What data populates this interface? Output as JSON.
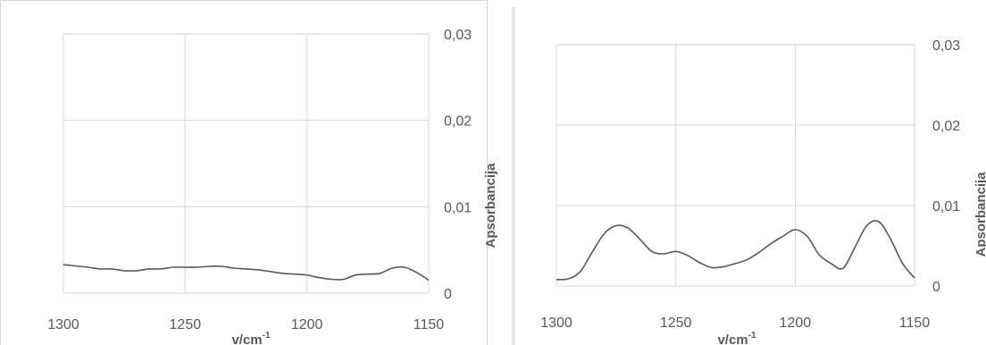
{
  "chart_data": [
    {
      "type": "line",
      "title": "",
      "xlabel": "v/cm",
      "xlabel_sup": "-1",
      "ylabel": "Apsorbancija",
      "x_reversed": true,
      "xlim": [
        1300,
        1150
      ],
      "ylim": [
        0,
        0.03
      ],
      "x_ticks": [
        1300,
        1250,
        1200,
        1150
      ],
      "y_ticks": [
        0,
        0.01,
        0.02,
        0.03
      ],
      "x_tick_labels": [
        "1300",
        "1250",
        "1200",
        "1150"
      ],
      "y_tick_labels": [
        "0",
        "0,01",
        "0,02",
        "0,03"
      ],
      "grid": true,
      "legend": "none",
      "series": [
        {
          "x": [
            1300,
            1290,
            1285,
            1280,
            1275,
            1270,
            1265,
            1260,
            1255,
            1250,
            1245,
            1240,
            1235,
            1230,
            1225,
            1220,
            1215,
            1210,
            1205,
            1200,
            1195,
            1190,
            1185,
            1180,
            1175,
            1170,
            1165,
            1160,
            1155,
            1150
          ],
          "y": [
            0.0033,
            0.003,
            0.0028,
            0.0028,
            0.0026,
            0.0026,
            0.0028,
            0.0028,
            0.003,
            0.003,
            0.003,
            0.0031,
            0.0031,
            0.0029,
            0.0028,
            0.0027,
            0.0025,
            0.0023,
            0.0022,
            0.0021,
            0.0018,
            0.0016,
            0.0016,
            0.0021,
            0.0022,
            0.0023,
            0.0029,
            0.003,
            0.0024,
            0.0015
          ]
        }
      ]
    },
    {
      "type": "line",
      "title": "",
      "xlabel": "v/cm",
      "xlabel_sup": "-1",
      "ylabel": "Apsorbancija",
      "x_reversed": true,
      "xlim": [
        1300,
        1150
      ],
      "ylim": [
        0,
        0.03
      ],
      "x_ticks": [
        1300,
        1250,
        1200,
        1150
      ],
      "y_ticks": [
        0,
        0.01,
        0.02,
        0.03
      ],
      "x_tick_labels": [
        "1300",
        "1250",
        "1200",
        "1150"
      ],
      "y_tick_labels": [
        "0",
        "0,01",
        "0,02",
        "0,03"
      ],
      "grid": true,
      "legend": "none",
      "series": [
        {
          "x": [
            1300,
            1295,
            1290,
            1285,
            1280,
            1275,
            1270,
            1265,
            1260,
            1255,
            1250,
            1245,
            1240,
            1235,
            1230,
            1225,
            1220,
            1215,
            1210,
            1205,
            1200,
            1195,
            1190,
            1185,
            1180,
            1175,
            1170,
            1165,
            1160,
            1155,
            1150
          ],
          "y": [
            0.0008,
            0.0009,
            0.0018,
            0.0042,
            0.0065,
            0.0075,
            0.0072,
            0.0058,
            0.0043,
            0.004,
            0.0043,
            0.0038,
            0.0029,
            0.0023,
            0.0024,
            0.0028,
            0.0033,
            0.0042,
            0.0053,
            0.0062,
            0.007,
            0.0062,
            0.0039,
            0.0028,
            0.0022,
            0.0048,
            0.0075,
            0.008,
            0.0058,
            0.0028,
            0.001
          ]
        }
      ]
    }
  ]
}
